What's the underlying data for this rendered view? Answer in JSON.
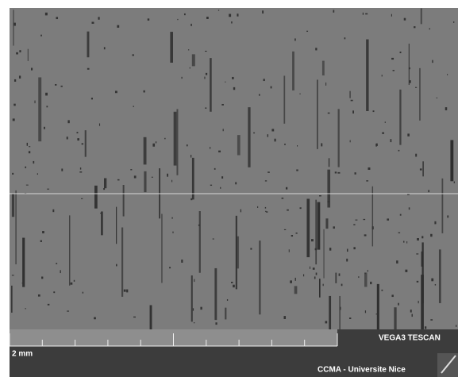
{
  "scale_bar": {
    "label": "2 mm"
  },
  "instrument": "VEGA3 TESCAN",
  "institution": "CCMA - Universite Nice"
}
